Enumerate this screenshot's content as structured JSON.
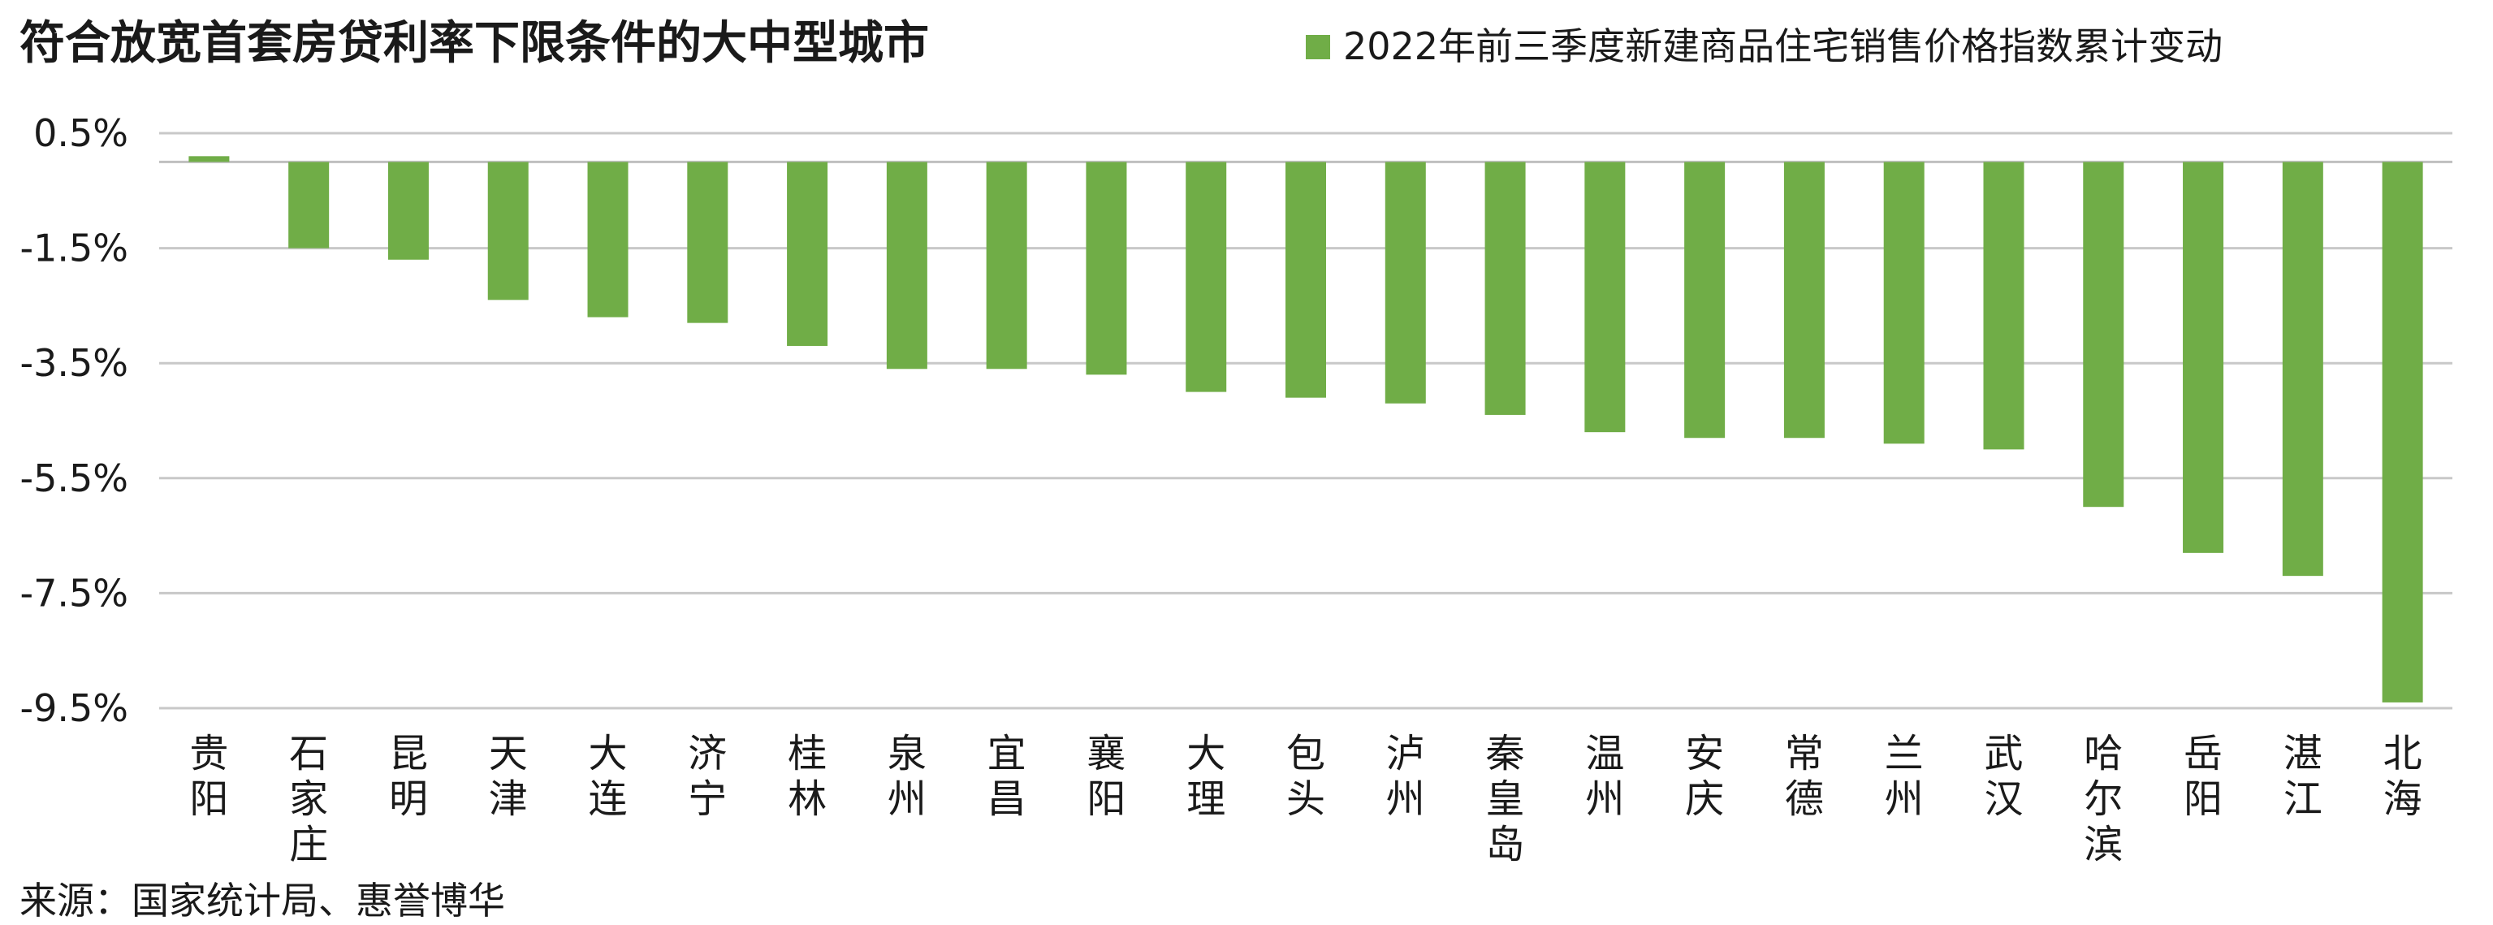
{
  "chart_data": {
    "type": "bar",
    "title": "符合放宽首套房贷利率下限条件的大中型城市",
    "legend": "2022年前三季度新建商品住宅销售价格指数累计变动",
    "legend_position": "top-right",
    "source": "来源：国家统计局、惠誉博华",
    "categories": [
      "贵阳",
      "石家庄",
      "昆明",
      "天津",
      "大连",
      "济宁",
      "桂林",
      "泉州",
      "宜昌",
      "襄阳",
      "大理",
      "包头",
      "泸州",
      "秦皇岛",
      "温州",
      "安庆",
      "常德",
      "兰州",
      "武汉",
      "哈尔滨",
      "岳阳",
      "湛江",
      "北海"
    ],
    "series": [
      {
        "values": [
          0.1,
          -1.5,
          -1.7,
          -2.4,
          -2.7,
          -2.8,
          -3.2,
          -3.6,
          -3.6,
          -3.7,
          -4.0,
          -4.1,
          -4.2,
          -4.4,
          -4.7,
          -4.8,
          -4.8,
          -4.9,
          -5.0,
          -6.0,
          -6.8,
          -7.2,
          -9.4
        ],
        "color": "#70ad47"
      }
    ],
    "y_ticks": [
      "0.5%",
      "-1.5%",
      "-3.5%",
      "-5.5%",
      "-7.5%",
      "-9.5%"
    ],
    "ylim": [
      -9.5,
      0.5
    ],
    "grid": true,
    "xlabel": "",
    "ylabel": ""
  }
}
